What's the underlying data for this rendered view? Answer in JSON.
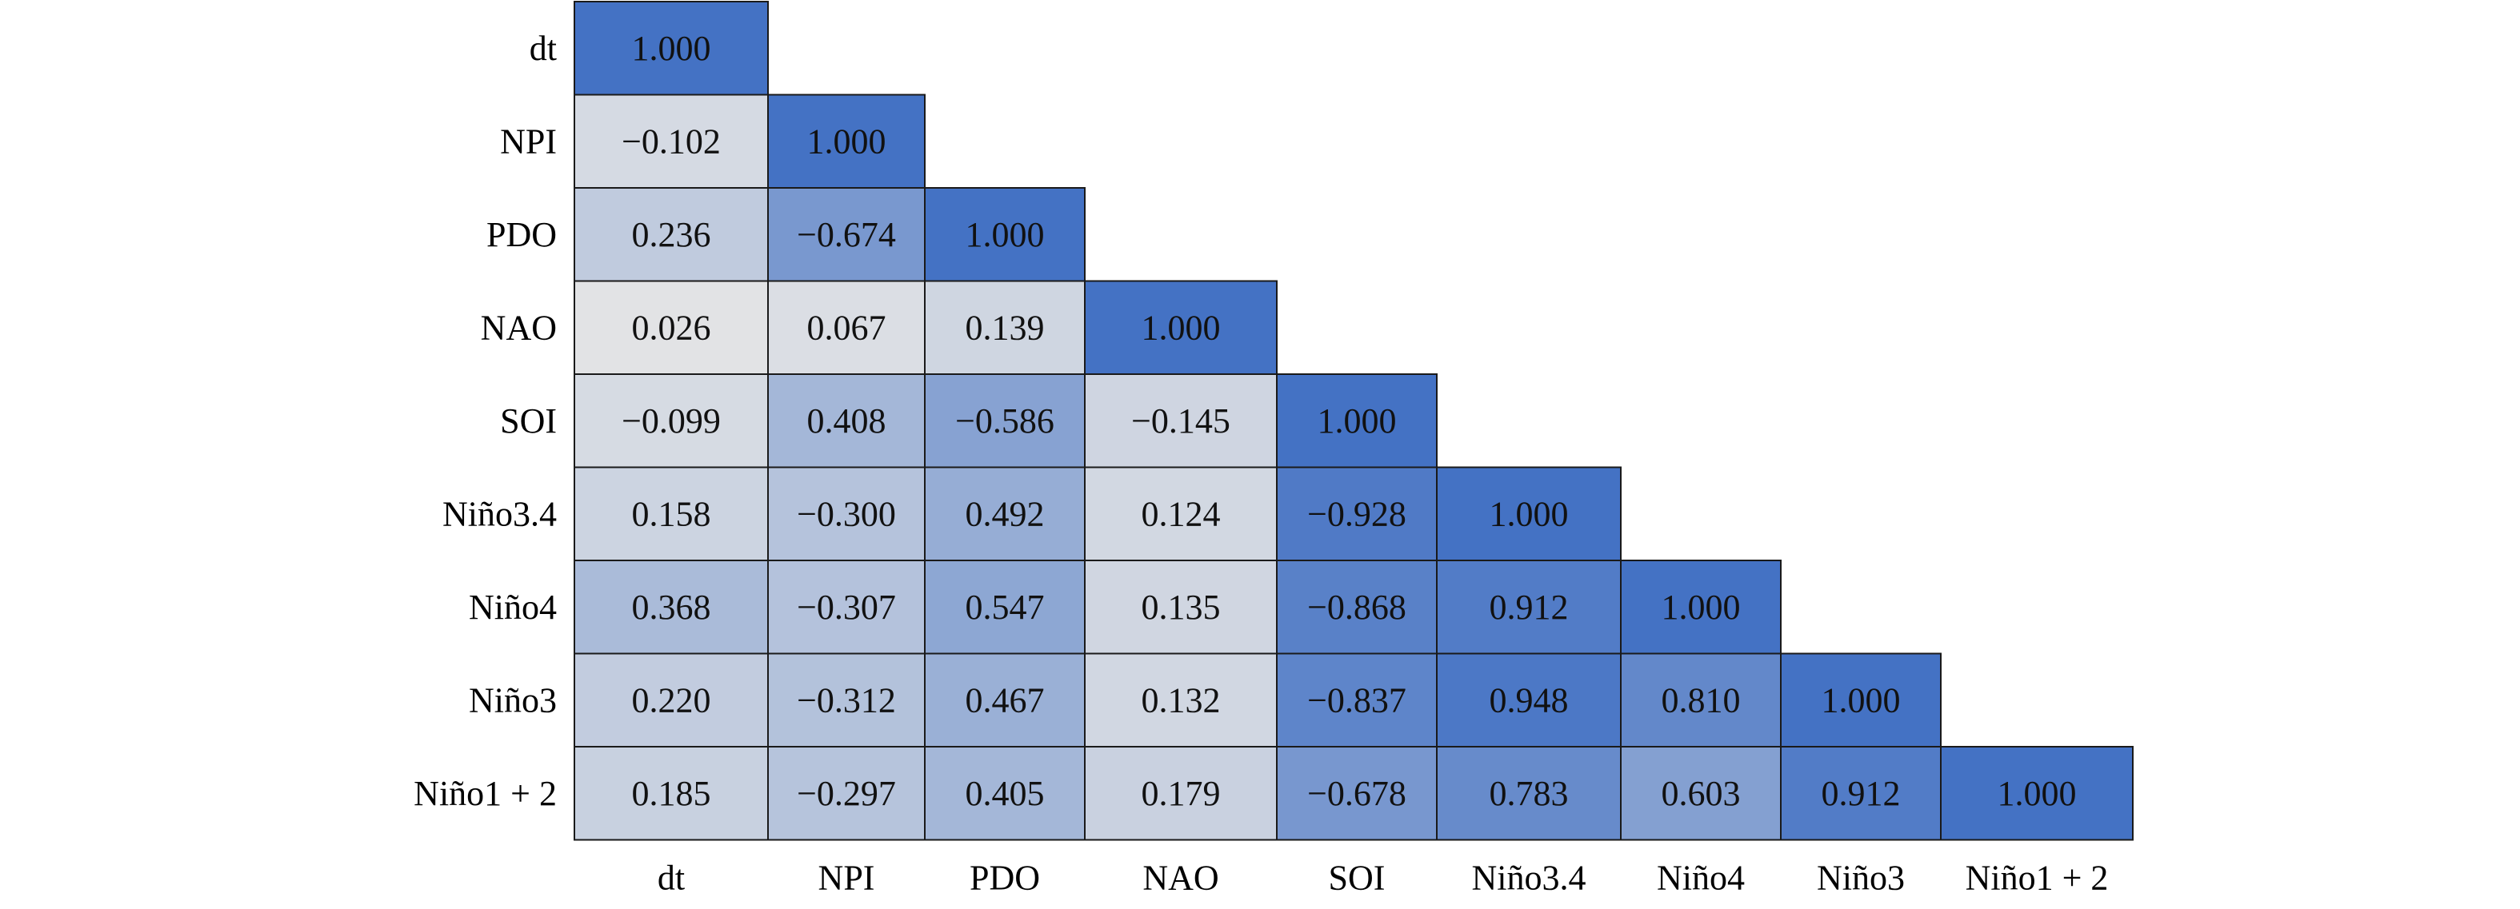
{
  "chart_data": {
    "type": "heatmap",
    "title": "",
    "xlabel": "",
    "ylabel": "",
    "row_labels": [
      "dt",
      "NPI",
      "PDO",
      "NAO",
      "SOI",
      "Niño3.4",
      "Niño4",
      "Niño3",
      "Niño1 + 2"
    ],
    "col_labels": [
      "dt",
      "NPI",
      "PDO",
      "NAO",
      "SOI",
      "Niño3.4",
      "Niño4",
      "Niño3",
      "Niño1 + 2"
    ],
    "values": [
      [
        1.0
      ],
      [
        -0.102,
        1.0
      ],
      [
        0.236,
        -0.674,
        1.0
      ],
      [
        0.026,
        0.067,
        0.139,
        1.0
      ],
      [
        -0.099,
        0.408,
        -0.586,
        -0.145,
        1.0
      ],
      [
        0.158,
        -0.3,
        0.492,
        0.124,
        -0.928,
        1.0
      ],
      [
        0.368,
        -0.307,
        0.547,
        0.135,
        -0.868,
        0.912,
        1.0
      ],
      [
        0.22,
        -0.312,
        0.467,
        0.132,
        -0.837,
        0.948,
        0.81,
        1.0
      ],
      [
        0.185,
        -0.297,
        0.405,
        0.179,
        -0.678,
        0.783,
        0.603,
        0.912,
        1.0
      ]
    ],
    "value_labels": [
      [
        "1.000"
      ],
      [
        "−0.102",
        "1.000"
      ],
      [
        "0.236",
        "−0.674",
        "1.000"
      ],
      [
        "0.026",
        "0.067",
        "0.139",
        "1.000"
      ],
      [
        "−0.099",
        "0.408",
        "−0.586",
        "−0.145",
        "1.000"
      ],
      [
        "0.158",
        "−0.300",
        "0.492",
        "0.124",
        "−0.928",
        "1.000"
      ],
      [
        "0.368",
        "−0.307",
        "0.547",
        "0.135",
        "−0.868",
        "0.912",
        "1.000"
      ],
      [
        "0.220",
        "−0.312",
        "0.467",
        "0.132",
        "−0.837",
        "0.948",
        "0.810",
        "1.000"
      ],
      [
        "0.185",
        "−0.297",
        "0.405",
        "0.179",
        "−0.678",
        "0.783",
        "0.603",
        "0.912",
        "1.000"
      ]
    ],
    "layout": "lower-triangle",
    "color_scale": {
      "low": "#e6e6e6",
      "high": "#4472c4",
      "metric": "absolute-value"
    },
    "grid": true,
    "legend": "none"
  }
}
